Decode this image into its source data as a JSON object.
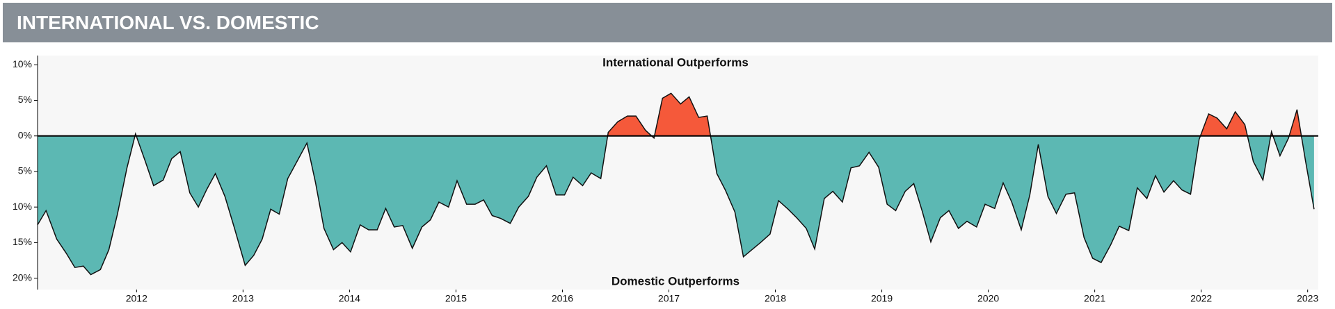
{
  "header": {
    "title": "INTERNATIONAL VS. DOMESTIC"
  },
  "chart_data": {
    "type": "area",
    "annotations": [
      "International Outperforms",
      "Domestic Outperforms"
    ],
    "x": [
      2011.07,
      2011.15,
      2011.25,
      2011.34,
      2011.42,
      2011.5,
      2011.57,
      2011.66,
      2011.74,
      2011.82,
      2011.91,
      2011.99,
      2012.08,
      2012.16,
      2012.25,
      2012.33,
      2012.41,
      2012.5,
      2012.58,
      2012.66,
      2012.74,
      2012.83,
      2012.92,
      2013.02,
      2013.1,
      2013.18,
      2013.26,
      2013.34,
      2013.42,
      2013.51,
      2013.6,
      2013.68,
      2013.76,
      2013.85,
      2013.93,
      2014.01,
      2014.1,
      2014.18,
      2014.26,
      2014.34,
      2014.42,
      2014.5,
      2014.59,
      2014.68,
      2014.76,
      2014.84,
      2014.93,
      2015.01,
      2015.1,
      2015.18,
      2015.26,
      2015.34,
      2015.42,
      2015.51,
      2015.59,
      2015.68,
      2015.76,
      2015.85,
      2015.94,
      2016.02,
      2016.1,
      2016.19,
      2016.27,
      2016.36,
      2016.43,
      2016.52,
      2016.61,
      2016.69,
      2016.78,
      2016.86,
      2016.94,
      2017.02,
      2017.11,
      2017.19,
      2017.28,
      2017.36,
      2017.45,
      2017.53,
      2017.62,
      2017.7,
      2017.78,
      2017.86,
      2017.95,
      2018.03,
      2018.12,
      2018.2,
      2018.29,
      2018.37,
      2018.46,
      2018.54,
      2018.63,
      2018.71,
      2018.79,
      2018.88,
      2018.97,
      2019.05,
      2019.13,
      2019.22,
      2019.3,
      2019.38,
      2019.46,
      2019.55,
      2019.63,
      2019.72,
      2019.8,
      2019.89,
      2019.97,
      2020.06,
      2020.14,
      2020.22,
      2020.31,
      2020.39,
      2020.47,
      2020.56,
      2020.64,
      2020.73,
      2020.81,
      2020.9,
      2020.98,
      2021.06,
      2021.15,
      2021.23,
      2021.32,
      2021.4,
      2021.49,
      2021.57,
      2021.65,
      2021.74,
      2021.82,
      2021.9,
      2021.98,
      2022.07,
      2022.15,
      2022.24,
      2022.32,
      2022.41,
      2022.49,
      2022.58,
      2022.66,
      2022.74,
      2022.82,
      2022.9,
      2022.98,
      2023.06
    ],
    "values": [
      -12.5,
      -10.5,
      -14.5,
      -16.5,
      -18.5,
      -18.3,
      -19.5,
      -18.8,
      -16,
      -11,
      -4.5,
      0.3,
      -3.5,
      -7,
      -6.2,
      -3.2,
      -2.2,
      -8,
      -10,
      -7.5,
      -5.3,
      -8.5,
      -13,
      -18.2,
      -16.8,
      -14.5,
      -10.3,
      -11,
      -6,
      -3.5,
      -1,
      -6.5,
      -13,
      -16,
      -15,
      -16.3,
      -12.5,
      -13.2,
      -13.2,
      -10.2,
      -12.8,
      -12.6,
      -15.8,
      -12.8,
      -11.8,
      -9.3,
      -10,
      -6.3,
      -9.6,
      -9.6,
      -9,
      -11.2,
      -11.6,
      -12.3,
      -10,
      -8.5,
      -5.8,
      -4.2,
      -8.3,
      -8.3,
      -5.8,
      -7,
      -5.2,
      -6,
      0.5,
      2,
      2.8,
      2.8,
      0.8,
      -0.3,
      5.3,
      6,
      4.5,
      5.5,
      2.6,
      2.8,
      -5.3,
      -7.6,
      -10.7,
      -17,
      -16,
      -15,
      -13.8,
      -9.1,
      -10.3,
      -11.5,
      -13,
      -15.9,
      -8.8,
      -7.8,
      -9.3,
      -4.5,
      -4.2,
      -2.3,
      -4.4,
      -9.6,
      -10.5,
      -7.8,
      -6.7,
      -10.6,
      -14.9,
      -11.5,
      -10.5,
      -13,
      -12,
      -12.8,
      -9.6,
      -10.2,
      -6.6,
      -9.3,
      -13.2,
      -8.3,
      -1.2,
      -8.5,
      -10.9,
      -8.2,
      -8,
      -14.3,
      -17.2,
      -17.8,
      -15.3,
      -12.7,
      -13.3,
      -7.3,
      -8.8,
      -5.6,
      -7.9,
      -6.3,
      -7.6,
      -8.2,
      -0.5,
      3.1,
      2.5,
      1,
      3.4,
      1.6,
      -3.6,
      -6.2,
      0.6,
      -2.8,
      -0.3,
      3.7,
      -3.5,
      -10.3
    ],
    "colors": {
      "above": "#f5593a",
      "below": "#5cb8b3"
    },
    "xlim": [
      2011.07,
      2023.1
    ],
    "xticks": [
      2012,
      2013,
      2014,
      2015,
      2016,
      2017,
      2018,
      2019,
      2020,
      2021,
      2022,
      2023
    ],
    "ylim": [
      -21.6,
      11.3
    ],
    "yticks": [
      {
        "value": 10,
        "label": "10%"
      },
      {
        "value": 5,
        "label": "5%"
      },
      {
        "value": 0,
        "label": "0%"
      },
      {
        "value": -5,
        "label": "5%"
      },
      {
        "value": -10,
        "label": "10%"
      },
      {
        "value": -15,
        "label": "15%"
      },
      {
        "value": -20,
        "label": "20%"
      }
    ]
  }
}
